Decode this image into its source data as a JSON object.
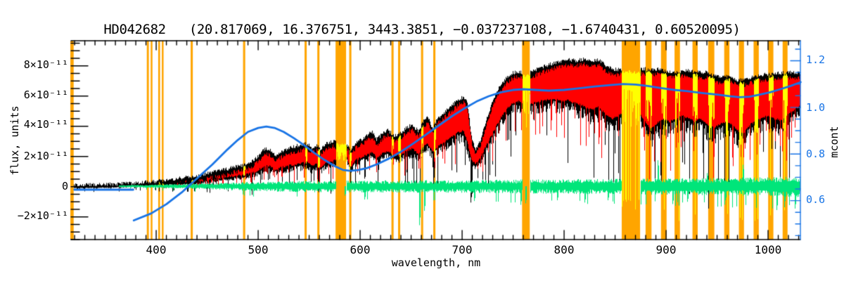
{
  "chart_data": {
    "type": "line",
    "title": "HD042682   (20.817069, 16.376751, 3443.3851, −0.037237108, −1.6740431, 0.60520095)",
    "xlabel": "wavelength, nm",
    "ylabel_left": "flux, units",
    "ylabel_right": "mcont",
    "xlim": [
      316.5,
      1031.7
    ],
    "ylim_left_1e11": [
      -3.5,
      9.66
    ],
    "ylim_right": [
      0.433,
      1.286
    ],
    "x_ticks": [
      400,
      500,
      600,
      700,
      800,
      900,
      1000
    ],
    "x_tick_labels": [
      "400",
      "500",
      "600",
      "700",
      "800",
      "900",
      "1000"
    ],
    "x_minor_step": 10,
    "y_left_ticks_1e11": [
      8,
      6,
      4,
      2,
      0,
      -2
    ],
    "y_left_tick_labels": [
      "8×10⁻¹¹",
      "6×10⁻¹¹",
      "4×10⁻¹¹",
      "2×10⁻¹¹",
      "0",
      "−2×10⁻¹¹"
    ],
    "y_left_minor_step_1e11": 0.5,
    "y_right_ticks": [
      1.2,
      1.0,
      0.8,
      0.6
    ],
    "y_right_tick_labels": [
      "1.2",
      "1.0",
      "0.8",
      "0.6"
    ],
    "y_right_minor_step": 0.05,
    "grid": false,
    "colors": {
      "background": "#ffffff",
      "frame": "#000000",
      "telluric_band": "#FFA500",
      "observed": "#000000",
      "model": "#FF0000",
      "telluric_spectrum": "#FFFF00",
      "residual": "#00E57A",
      "mcont": "#1874E6",
      "right_axis": "#1874E6"
    },
    "telluric_bands_nm": [
      [
        316.2,
        318.9
      ],
      [
        390.8,
        392.8
      ],
      [
        394.6,
        396.3
      ],
      [
        402.0,
        403.8
      ],
      [
        405.5,
        407.2
      ],
      [
        433.8,
        435.9
      ],
      [
        485.2,
        487.3
      ],
      [
        545.5,
        547.6
      ],
      [
        558.0,
        560.1
      ],
      [
        575.9,
        586.2
      ],
      [
        589.3,
        591.4
      ],
      [
        630.7,
        632.8
      ],
      [
        637.2,
        639.3
      ],
      [
        659.7,
        661.8
      ],
      [
        671.7,
        673.8
      ],
      [
        758.8,
        766.3
      ],
      [
        856.5,
        874.5
      ],
      [
        879.9,
        885.7
      ],
      [
        895.0,
        900.5
      ],
      [
        908.3,
        913.6
      ],
      [
        925.9,
        931.0
      ],
      [
        941.3,
        947.3
      ],
      [
        957.0,
        962.1
      ],
      [
        971.4,
        976.4
      ],
      [
        985.8,
        990.9
      ],
      [
        1000.1,
        1005.2
      ],
      [
        1014.3,
        1019.1
      ]
    ],
    "series": {
      "observed_black_envelope_nm_hi_lo_1e11": [
        [
          316,
          0.12,
          -0.06
        ],
        [
          340,
          0.14,
          -0.05
        ],
        [
          360,
          0.18,
          -0.02
        ],
        [
          375,
          0.22,
          0.02
        ],
        [
          385,
          0.28,
          0.05
        ],
        [
          395,
          0.33,
          0.08
        ],
        [
          405,
          0.4,
          0.12
        ],
        [
          415,
          0.5,
          0.18
        ],
        [
          425,
          0.6,
          0.22
        ],
        [
          433,
          0.68,
          0.26
        ],
        [
          437,
          0.62,
          0.22
        ],
        [
          445,
          0.8,
          0.32
        ],
        [
          455,
          0.95,
          0.42
        ],
        [
          465,
          1.1,
          0.52
        ],
        [
          475,
          1.28,
          0.6
        ],
        [
          485,
          1.42,
          0.68
        ],
        [
          492,
          1.6,
          0.78
        ],
        [
          500,
          2.0,
          1.0
        ],
        [
          506,
          2.5,
          1.3
        ],
        [
          511,
          2.45,
          1.25
        ],
        [
          516,
          2.05,
          1.02
        ],
        [
          522,
          2.3,
          1.15
        ],
        [
          530,
          2.55,
          1.3
        ],
        [
          540,
          2.75,
          1.42
        ],
        [
          548,
          2.85,
          1.5
        ],
        [
          552,
          2.55,
          1.25
        ],
        [
          557,
          2.75,
          1.4
        ],
        [
          561,
          2.45,
          1.2
        ],
        [
          566,
          2.9,
          1.5
        ],
        [
          573,
          3.0,
          1.6
        ],
        [
          580,
          2.9,
          1.95
        ],
        [
          586,
          2.95,
          2.0
        ],
        [
          590,
          2.45,
          1.15
        ],
        [
          596,
          2.95,
          1.7
        ],
        [
          602,
          3.15,
          1.85
        ],
        [
          608,
          3.5,
          2.1
        ],
        [
          612,
          3.65,
          2.2
        ],
        [
          616,
          3.1,
          1.85
        ],
        [
          622,
          3.55,
          2.1
        ],
        [
          627,
          3.75,
          2.25
        ],
        [
          633,
          3.35,
          1.95
        ],
        [
          639,
          3.5,
          2.0
        ],
        [
          646,
          3.95,
          2.3
        ],
        [
          651,
          4.1,
          2.4
        ],
        [
          657,
          3.65,
          2.05
        ],
        [
          662,
          4.35,
          2.55
        ],
        [
          666,
          4.6,
          2.75
        ],
        [
          671,
          3.85,
          2.2
        ],
        [
          676,
          4.55,
          2.6
        ],
        [
          682,
          4.9,
          2.85
        ],
        [
          689,
          5.35,
          3.2
        ],
        [
          696,
          5.75,
          3.5
        ],
        [
          701,
          5.95,
          3.6
        ],
        [
          705,
          5.5,
          2.8
        ],
        [
          709,
          3.3,
          1.6
        ],
        [
          713,
          2.45,
          1.4
        ],
        [
          718,
          3.1,
          1.85
        ],
        [
          724,
          4.5,
          2.7
        ],
        [
          730,
          5.7,
          3.5
        ],
        [
          737,
          6.7,
          4.4
        ],
        [
          744,
          7.25,
          5.1
        ],
        [
          750,
          7.55,
          5.45
        ],
        [
          755,
          7.6,
          5.55
        ],
        [
          760,
          7.5,
          5.3
        ],
        [
          766,
          7.55,
          5.35
        ],
        [
          772,
          7.75,
          5.5
        ],
        [
          780,
          7.95,
          5.6
        ],
        [
          788,
          8.15,
          5.7
        ],
        [
          796,
          8.3,
          5.6
        ],
        [
          804,
          8.4,
          5.6
        ],
        [
          812,
          8.35,
          5.4
        ],
        [
          820,
          8.45,
          5.2
        ],
        [
          827,
          8.3,
          5.0
        ],
        [
          834,
          8.4,
          5.2
        ],
        [
          841,
          8.0,
          4.6
        ],
        [
          847,
          7.8,
          4.4
        ],
        [
          853,
          7.75,
          4.6
        ],
        [
          860,
          7.8,
          4.8
        ],
        [
          867,
          7.75,
          4.5
        ],
        [
          874,
          7.8,
          4.8
        ],
        [
          879,
          7.8,
          4.2
        ],
        [
          885,
          7.7,
          3.7
        ],
        [
          891,
          7.8,
          4.1
        ],
        [
          897,
          7.7,
          4.4
        ],
        [
          903,
          7.6,
          4.2
        ],
        [
          910,
          7.55,
          4.4
        ],
        [
          916,
          7.65,
          4.6
        ],
        [
          922,
          7.7,
          4.4
        ],
        [
          928,
          7.6,
          4.2
        ],
        [
          934,
          7.55,
          4.4
        ],
        [
          940,
          7.6,
          4.0
        ],
        [
          946,
          7.35,
          3.8
        ],
        [
          952,
          7.25,
          4.0
        ],
        [
          958,
          7.3,
          4.2
        ],
        [
          964,
          7.25,
          4.0
        ],
        [
          970,
          7.05,
          3.6
        ],
        [
          976,
          7.05,
          3.5
        ],
        [
          982,
          7.2,
          4.0
        ],
        [
          988,
          7.3,
          4.2
        ],
        [
          994,
          7.4,
          4.5
        ],
        [
          1000,
          7.45,
          4.6
        ],
        [
          1006,
          7.5,
          4.4
        ],
        [
          1012,
          7.5,
          4.3
        ],
        [
          1018,
          7.6,
          4.6
        ],
        [
          1024,
          7.55,
          4.9
        ],
        [
          1032,
          7.55,
          5.3
        ]
      ],
      "model_red": {
        "start_nm": 377.5,
        "top_offset_1e11": -0.2,
        "bottom_offset_1e11": 0.1
      },
      "residual_green": {
        "start_nm": 363,
        "center_1e11": 0.03,
        "amplitude_keypoints_nm_1e11": [
          [
            363,
            0.06
          ],
          [
            400,
            0.1
          ],
          [
            440,
            0.16
          ],
          [
            480,
            0.24
          ],
          [
            520,
            0.3
          ],
          [
            560,
            0.34
          ],
          [
            600,
            0.34
          ],
          [
            650,
            0.36
          ],
          [
            700,
            0.36
          ],
          [
            750,
            0.4
          ],
          [
            800,
            0.42
          ],
          [
            850,
            0.45
          ],
          [
            900,
            0.48
          ],
          [
            950,
            0.5
          ],
          [
            1000,
            0.55
          ],
          [
            1032,
            0.6
          ]
        ],
        "spikes_nm_1e11": [
          [
            585,
            -0.6
          ],
          [
            604,
            -0.85
          ],
          [
            658,
            -2.55
          ],
          [
            663,
            -1.6
          ],
          [
            712,
            -0.95
          ],
          [
            757,
            -1.2
          ],
          [
            762,
            -1.1
          ],
          [
            793,
            -0.9
          ],
          [
            820,
            -1.05
          ],
          [
            843,
            -0.9
          ],
          [
            892,
            1.75
          ],
          [
            906,
            -1.15
          ],
          [
            921,
            -1.0
          ],
          [
            940,
            0.9
          ],
          [
            958,
            -0.9
          ],
          [
            975,
            1.45
          ],
          [
            1008,
            -1.55
          ],
          [
            1016,
            -1.2
          ],
          [
            1026,
            -1.45
          ]
        ]
      },
      "mcont_blue": {
        "flat_segment": {
          "x_nm": [
            319.5,
            377.5
          ],
          "value": 0.647
        },
        "points_nm_mcont": [
          [
            378,
            0.515
          ],
          [
            395,
            0.545
          ],
          [
            410,
            0.585
          ],
          [
            425,
            0.635
          ],
          [
            440,
            0.695
          ],
          [
            455,
            0.755
          ],
          [
            470,
            0.82
          ],
          [
            480,
            0.86
          ],
          [
            490,
            0.895
          ],
          [
            500,
            0.912
          ],
          [
            508,
            0.918
          ],
          [
            516,
            0.912
          ],
          [
            525,
            0.895
          ],
          [
            535,
            0.868
          ],
          [
            545,
            0.838
          ],
          [
            555,
            0.805
          ],
          [
            565,
            0.775
          ],
          [
            575,
            0.748
          ],
          [
            583,
            0.732
          ],
          [
            590,
            0.728
          ],
          [
            598,
            0.731
          ],
          [
            607,
            0.74
          ],
          [
            617,
            0.757
          ],
          [
            628,
            0.78
          ],
          [
            640,
            0.81
          ],
          [
            652,
            0.845
          ],
          [
            665,
            0.885
          ],
          [
            678,
            0.925
          ],
          [
            690,
            0.962
          ],
          [
            702,
            0.995
          ],
          [
            714,
            1.025
          ],
          [
            726,
            1.048
          ],
          [
            738,
            1.065
          ],
          [
            750,
            1.075
          ],
          [
            760,
            1.078
          ],
          [
            772,
            1.075
          ],
          [
            785,
            1.072
          ],
          [
            800,
            1.075
          ],
          [
            815,
            1.082
          ],
          [
            830,
            1.09
          ],
          [
            845,
            1.096
          ],
          [
            858,
            1.1
          ],
          [
            870,
            1.098
          ],
          [
            882,
            1.092
          ],
          [
            895,
            1.083
          ],
          [
            908,
            1.075
          ],
          [
            920,
            1.07
          ],
          [
            935,
            1.062
          ],
          [
            950,
            1.055
          ],
          [
            962,
            1.048
          ],
          [
            972,
            1.044
          ],
          [
            982,
            1.046
          ],
          [
            992,
            1.055
          ],
          [
            1002,
            1.065
          ],
          [
            1012,
            1.078
          ],
          [
            1022,
            1.092
          ],
          [
            1032,
            1.108
          ]
        ]
      }
    }
  }
}
